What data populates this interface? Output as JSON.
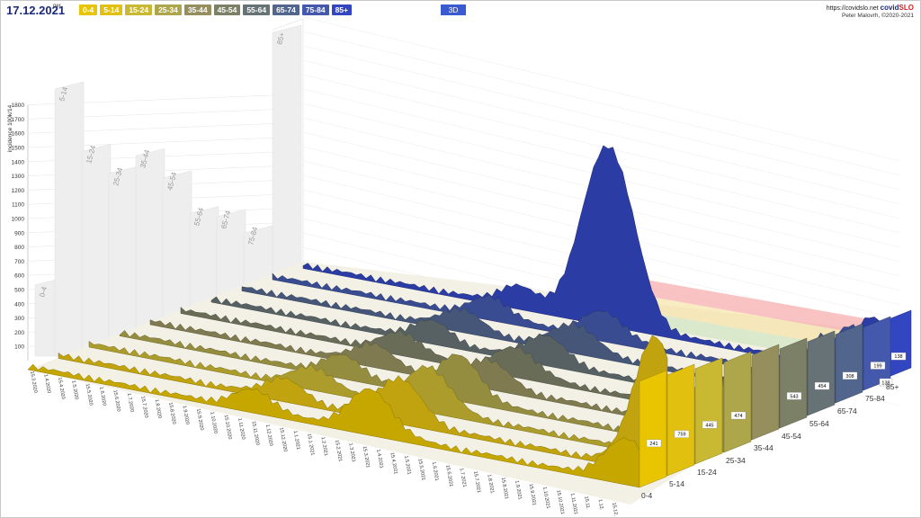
{
  "header": {
    "date": "17.12.2021",
    "per": "per",
    "view_button": "3D",
    "site_prefix": "https://covidslo.net",
    "brand_main": "covid",
    "brand_accent": "SLO",
    "author": "Peter Malovrh, ©2020-2021"
  },
  "colors": {
    "accent": "#3a5ad0",
    "brand_red": "#d42020"
  },
  "chart_data": {
    "type": "area",
    "mode": "3d-ridgeline",
    "title": "",
    "ylabel": "incidence 100k/14",
    "yticks": [
      100,
      200,
      300,
      400,
      500,
      600,
      700,
      800,
      900,
      1000,
      1100,
      1200,
      1300,
      1400,
      1500,
      1600,
      1700,
      1800
    ],
    "ylim": [
      0,
      1800
    ],
    "age_groups": [
      "0-4",
      "5-14",
      "15-24",
      "25-34",
      "35-44",
      "45-54",
      "55-64",
      "65-74",
      "75-84",
      "85+"
    ],
    "group_colors": [
      "#e9c400",
      "#e2c010",
      "#c9b832",
      "#aea64a",
      "#958f5d",
      "#7c8066",
      "#667276",
      "#52658d",
      "#4459ab",
      "#3246c2"
    ],
    "date_labels": [
      "15.3.2020",
      "1.4.2020",
      "15.4.2020",
      "1.5.2020",
      "15.5.2020",
      "1.6.2020",
      "15.6.2020",
      "1.7.2020",
      "15.7.2020",
      "1.8.2020",
      "15.8.2020",
      "1.9.2020",
      "15.9.2020",
      "1.10.2020",
      "15.10.2020",
      "1.11.2020",
      "15.11.2020",
      "1.12.2020",
      "15.12.2020",
      "1.1.2021",
      "15.1.2021",
      "1.2.2021",
      "15.2.2021",
      "1.3.2021",
      "15.3.2021",
      "1.4.2021",
      "15.4.2021",
      "1.5.2021",
      "15.5.2021",
      "1.6.2021",
      "15.6.2021",
      "1.7.2021",
      "15.7.2021",
      "1.8.2021",
      "15.8.2021",
      "1.9.2021",
      "15.9.2021",
      "1.10.2021",
      "15.10.2021",
      "1.11.2021",
      "15.11.",
      "1.12.",
      "15.12."
    ],
    "current_values": [
      {
        "group": "0-4",
        "value": 241
      },
      {
        "group": "5-14",
        "value": 759
      },
      {
        "group": "15-24",
        "value": 445
      },
      {
        "group": "25-34",
        "value": 474
      },
      {
        "group": "35-44",
        "value": ""
      },
      {
        "group": "45-54",
        "value": 543
      },
      {
        "group": "55-64",
        "value": 454
      },
      {
        "group": "65-74",
        "value": 308
      },
      {
        "group": "75-84",
        "value": 199
      },
      {
        "group": "85+",
        "value": 138
      }
    ],
    "extra_label": "138",
    "backdrop_peaks": [
      {
        "group": "0-4",
        "value": 480
      },
      {
        "group": "5-14",
        "value": 1800
      },
      {
        "group": "15-24",
        "value": 1380
      },
      {
        "group": "25-34",
        "value": 1230
      },
      {
        "group": "35-44",
        "value": 1350
      },
      {
        "group": "45-54",
        "value": 1200
      },
      {
        "group": "55-64",
        "value": 960
      },
      {
        "group": "65-74",
        "value": 940
      },
      {
        "group": "75-84",
        "value": 830
      },
      {
        "group": "85+",
        "value": 2400
      }
    ],
    "grid": true,
    "legend": "top"
  }
}
